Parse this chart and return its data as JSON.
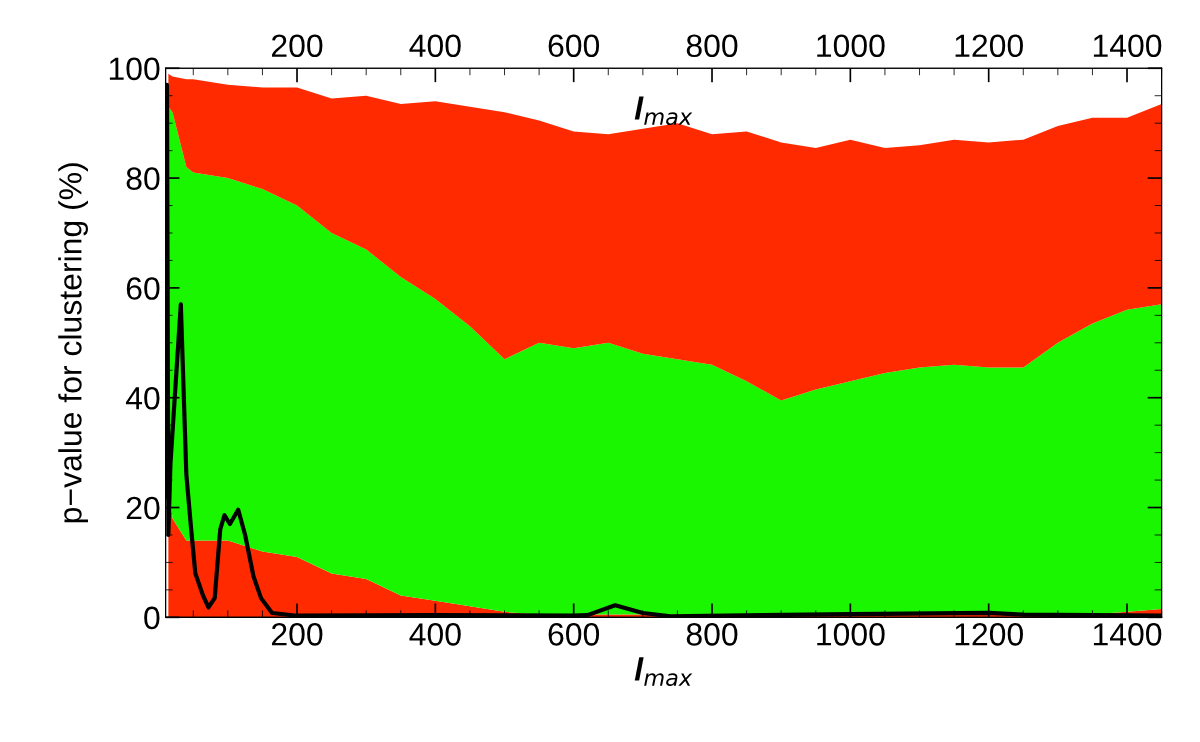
{
  "chart_data": {
    "type": "area",
    "stacked": true,
    "xlabel": "l$_{max}$",
    "x2label": "l$_{max}$",
    "ylabel": "p−value for clustering (%)",
    "x": [
      14,
      20,
      40,
      50,
      100,
      150,
      200,
      250,
      300,
      350,
      400,
      450,
      500,
      550,
      600,
      650,
      700,
      750,
      800,
      850,
      900,
      950,
      1000,
      1050,
      1100,
      1150,
      1200,
      1250,
      1300,
      1350,
      1400,
      1450
    ],
    "series": [
      {
        "color": "#ff2a00",
        "values": [
          25,
          18,
          14,
          14,
          14,
          12,
          11,
          8,
          7,
          4,
          3,
          2,
          1,
          0.5,
          0.5,
          0.5,
          0.5,
          0.5,
          0.5,
          0.5,
          0.5,
          0.5,
          0.5,
          0.5,
          0.5,
          0.5,
          0.5,
          0.5,
          0.5,
          0.5,
          1,
          1.5
        ]
      },
      {
        "color": "#1af500",
        "values": [
          68,
          74,
          68,
          67,
          66,
          66,
          64,
          62,
          60,
          58,
          55,
          51,
          46,
          49.5,
          48.5,
          49.5,
          47.5,
          46.5,
          45.5,
          42.5,
          39,
          41,
          42.5,
          44,
          45,
          45.5,
          45,
          45,
          49.5,
          53,
          55,
          55.5
        ]
      },
      {
        "color": "#ff2a00",
        "values": [
          6,
          6.5,
          16,
          17,
          17,
          18.5,
          21.5,
          24.5,
          28,
          31.5,
          36,
          40,
          45,
          40.5,
          39.5,
          38,
          41,
          43,
          42,
          45.5,
          47,
          44,
          44,
          41,
          40.5,
          41,
          41,
          41.5,
          39.5,
          37.5,
          35,
          36.5
        ]
      },
      {
        "type": "line",
        "color": "#000000",
        "x": [
          11,
          12,
          14,
          17,
          32,
          40,
          47,
          53,
          64,
          72,
          81,
          89,
          95,
          103,
          115,
          125,
          137,
          148,
          164,
          200,
          400,
          600,
          620,
          660,
          700,
          740,
          1000,
          1200,
          1250,
          1450
        ],
        "values": [
          22,
          97,
          15,
          28,
          57,
          26,
          16,
          8,
          4,
          1.8,
          3.5,
          16,
          18.6,
          17,
          19.6,
          15,
          7.5,
          3.5,
          0.8,
          0.3,
          0.4,
          0.3,
          0.4,
          2.2,
          0.8,
          0.2,
          0.6,
          0.8,
          0.5,
          0.3
        ]
      }
    ],
    "xlim": [
      10,
      1450
    ],
    "xticks": [
      200,
      400,
      600,
      800,
      1000,
      1200,
      1400
    ],
    "x2lim": [
      10,
      1450
    ],
    "x2ticks": [
      200,
      400,
      600,
      800,
      1000,
      1200,
      1400
    ],
    "ylim": [
      0,
      100
    ],
    "yticks": [
      0,
      20,
      40,
      60,
      80,
      100
    ],
    "grid": false,
    "legend": false
  }
}
